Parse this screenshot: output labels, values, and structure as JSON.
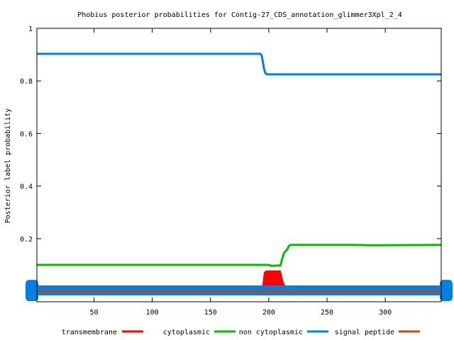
{
  "chart_data": {
    "type": "line",
    "title": "Phobius posterior probabilities for Contig-27_CDS_annotation_glimmer3Xpl_2_4",
    "xlabel": "",
    "ylabel": "Posterior label probability",
    "xlim": [
      1,
      348
    ],
    "ylim": [
      -0.04,
      1
    ],
    "xticks": [
      50,
      100,
      150,
      200,
      250,
      300
    ],
    "yticks": [
      0.2,
      0.4,
      0.6,
      0.8,
      1
    ],
    "ytick_labels": [
      "0.2",
      "0.4",
      "0.6",
      "0.8",
      "1"
    ],
    "xtick_labels": [
      "50",
      "100",
      "150",
      "200",
      "250",
      "300"
    ],
    "legend_position": "bottom",
    "series": [
      {
        "name": "transmembrane",
        "color": "#ff0000",
        "style": "filled-area",
        "x": [
          1,
          194,
          195,
          196,
          197,
          198,
          210,
          211,
          212,
          213,
          214,
          215,
          348
        ],
        "y": [
          0,
          0,
          0.03,
          0.07,
          0.075,
          0.078,
          0.078,
          0.06,
          0.04,
          0.03,
          0.02,
          0,
          0
        ]
      },
      {
        "name": "cytoplasmic",
        "color": "#00bb00",
        "style": "line",
        "x": [
          1,
          200,
          202,
          210,
          211,
          212,
          213,
          214,
          215,
          216,
          217,
          218,
          220,
          270,
          290,
          348
        ],
        "y": [
          0.1,
          0.1,
          0.097,
          0.098,
          0.115,
          0.13,
          0.145,
          0.15,
          0.155,
          0.16,
          0.17,
          0.175,
          0.176,
          0.176,
          0.175,
          0.176
        ]
      },
      {
        "name": "non cytoplasmic",
        "color": "#0080e0",
        "style": "line",
        "x": [
          1,
          193,
          194,
          195,
          196,
          197,
          198,
          200,
          348
        ],
        "y": [
          0.003,
          0.003,
          0.003,
          0.003,
          0.003,
          0.003,
          0.003,
          0.003,
          0.003
        ]
      },
      {
        "name": "signal peptide",
        "color": "#cc4400",
        "style": "line",
        "x": [
          1,
          348
        ],
        "y": [
          0,
          0
        ]
      },
      {
        "name": "",
        "color": "#0080e0",
        "style": "line",
        "x": [
          1,
          193,
          194,
          195,
          196,
          197,
          198,
          200,
          348
        ],
        "y": [
          0.903,
          0.903,
          0.895,
          0.87,
          0.845,
          0.83,
          0.826,
          0.825,
          0.825
        ]
      }
    ]
  }
}
